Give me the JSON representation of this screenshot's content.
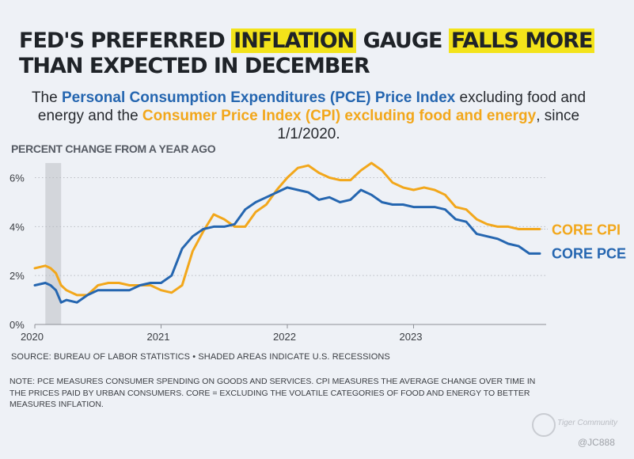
{
  "title": {
    "part1": "FED'S PREFERRED ",
    "highlight1": "INFLATION",
    "part2": " GAUGE ",
    "highlight2": "FALLS MORE",
    "part3": "THAN EXPECTED IN DECEMBER"
  },
  "subtitle": {
    "prefix": "The ",
    "pce_name": "Personal Consumption Expenditures (PCE) Price Index",
    "middle": " excluding food and energy and the ",
    "cpi_name": "Consumer Price Index (CPI) excluding food and energy",
    "suffix": ", since 1/1/2020."
  },
  "y_axis_title": "PERCENT CHANGE FROM A YEAR AGO",
  "source": "SOURCE: BUREAU OF LABOR STATISTICS • SHADED AREAS INDICATE U.S. RECESSIONS",
  "note": "NOTE: PCE MEASURES CONSUMER SPENDING ON GOODS AND SERVICES. CPI MEASURES THE AVERAGE CHANGE OVER TIME IN THE PRICES PAID BY URBAN CONSUMERS. CORE = EXCLUDING THE VOLATILE CATEGORIES OF FOOD AND ENERGY TO BETTER MEASURES INFLATION.",
  "watermark": {
    "text": "Tiger Community",
    "handle": "@JC888"
  },
  "colors": {
    "pce": "#2566b0",
    "cpi": "#f2a71b",
    "recession": "#d3d6db",
    "highlight": "#f3e31a"
  },
  "chart_data": {
    "type": "line",
    "x_label": "",
    "y_label": "PERCENT CHANGE FROM A YEAR AGO",
    "x_ticks": [
      "2020",
      "2021",
      "2022",
      "2023"
    ],
    "y_ticks": [
      "0%",
      "2%",
      "4%",
      "6%"
    ],
    "y_range": [
      0,
      6.6
    ],
    "x_range": [
      0,
      48
    ],
    "recession": [
      1,
      2.5
    ],
    "series": [
      {
        "name": "CORE CPI",
        "color": "#f2a71b",
        "x": [
          0,
          1,
          1.5,
          2,
          2.5,
          3,
          4,
          5,
          6,
          7,
          8,
          9,
          10,
          11,
          12,
          13,
          14,
          15,
          16,
          17,
          17.5,
          18,
          19,
          20,
          21,
          22,
          23,
          24,
          25,
          26,
          27,
          28,
          29,
          30,
          31,
          32,
          33,
          34,
          35,
          36,
          37,
          38,
          39,
          40,
          41,
          42,
          43,
          44,
          45,
          46,
          47,
          48
        ],
        "values": [
          2.3,
          2.4,
          2.3,
          2.1,
          1.6,
          1.4,
          1.2,
          1.2,
          1.6,
          1.7,
          1.7,
          1.6,
          1.6,
          1.6,
          1.4,
          1.3,
          1.6,
          3.0,
          3.8,
          4.5,
          4.4,
          4.3,
          4.0,
          4.0,
          4.6,
          4.9,
          5.5,
          6.0,
          6.4,
          6.5,
          6.2,
          6.0,
          5.9,
          5.9,
          6.3,
          6.6,
          6.3,
          5.8,
          5.6,
          5.5,
          5.6,
          5.5,
          5.3,
          4.8,
          4.7,
          4.3,
          4.1,
          4.0,
          4.0,
          3.9,
          3.9,
          3.9
        ]
      },
      {
        "name": "CORE PCE",
        "color": "#2566b0",
        "x": [
          0,
          1,
          1.5,
          2,
          2.5,
          3,
          4,
          5,
          6,
          7,
          8,
          9,
          10,
          11,
          12,
          13,
          14,
          15,
          16,
          17,
          18,
          19,
          20,
          21,
          22,
          23,
          24,
          25,
          26,
          27,
          28,
          29,
          30,
          31,
          32,
          33,
          34,
          35,
          36,
          37,
          38,
          39,
          40,
          41,
          42,
          43,
          44,
          45,
          46,
          47,
          48
        ],
        "values": [
          1.6,
          1.7,
          1.6,
          1.4,
          0.9,
          1.0,
          0.9,
          1.2,
          1.4,
          1.4,
          1.4,
          1.4,
          1.6,
          1.7,
          1.7,
          2.0,
          3.1,
          3.6,
          3.9,
          4.0,
          4.0,
          4.1,
          4.7,
          5.0,
          5.2,
          5.4,
          5.6,
          5.5,
          5.4,
          5.1,
          5.2,
          5.0,
          5.1,
          5.5,
          5.3,
          5.0,
          4.9,
          4.9,
          4.8,
          4.8,
          4.8,
          4.7,
          4.3,
          4.2,
          3.7,
          3.6,
          3.5,
          3.3,
          3.2,
          2.9,
          2.9
        ]
      }
    ]
  }
}
